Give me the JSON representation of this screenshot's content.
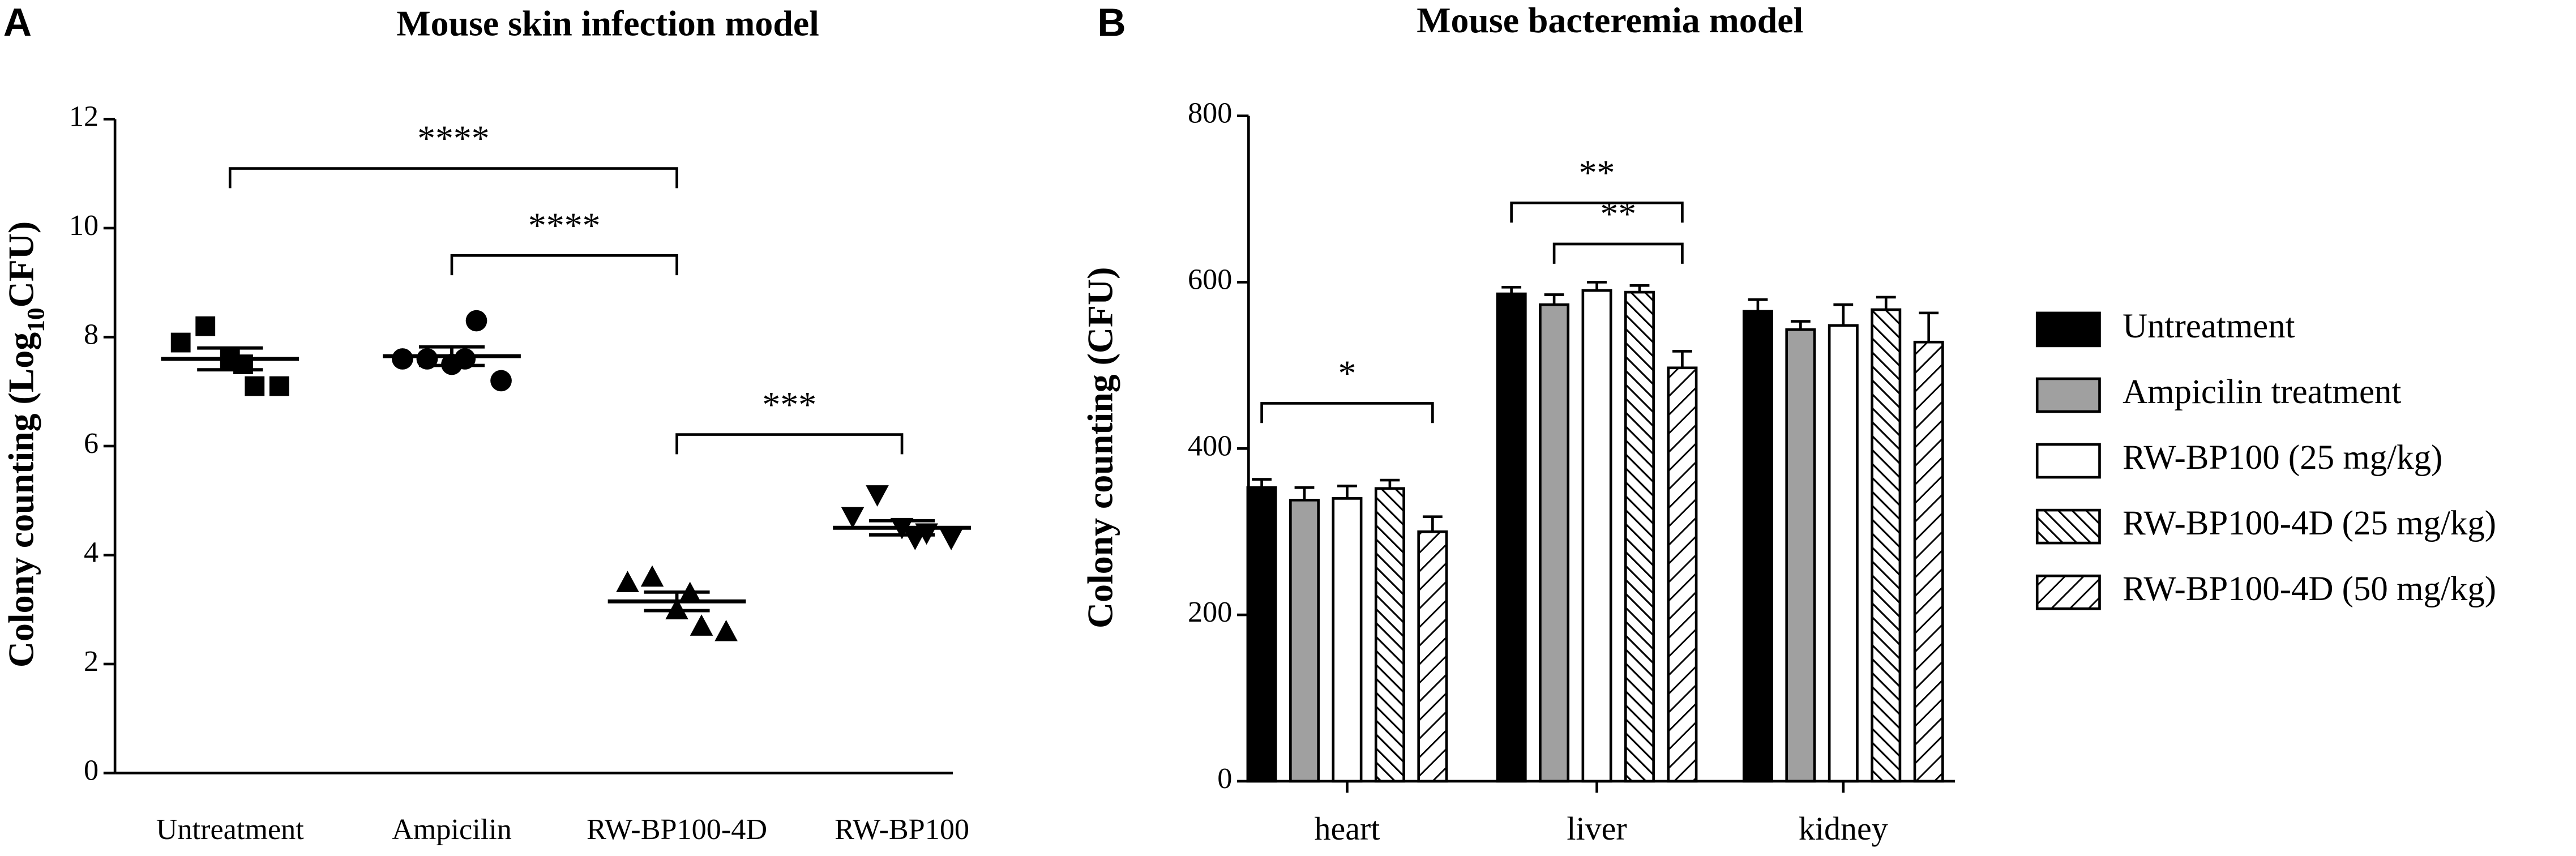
{
  "chart_data": [
    {
      "type": "dot",
      "panel": "A",
      "title": "Mouse skin infection model",
      "ylabel": [
        "Colony counting (Log",
        "10",
        "CFU)"
      ],
      "categories": [
        "Untreatment",
        "Ampicilin",
        "RW-BP100-4D",
        "RW-BP100"
      ],
      "markers": [
        "square",
        "circle",
        "triangle",
        "triangle-down"
      ],
      "color": "#000000",
      "values": [
        [
          7.9,
          8.2,
          7.6,
          7.1,
          7.1,
          7.5
        ],
        [
          7.6,
          7.6,
          7.5,
          8.3,
          7.2,
          7.6
        ],
        [
          3.5,
          3.6,
          3.0,
          2.7,
          2.6,
          3.3
        ],
        [
          4.7,
          5.1,
          4.5,
          4.4,
          4.3,
          4.3
        ]
      ],
      "means": [
        7.6,
        7.65,
        3.15,
        4.5
      ],
      "sems": [
        0.2,
        0.17,
        0.17,
        0.13
      ],
      "ylim": [
        0,
        12
      ],
      "yticks": [
        0,
        2,
        4,
        6,
        8,
        10,
        12
      ],
      "annotations": [
        "****",
        "****",
        "***"
      ]
    },
    {
      "type": "bar",
      "panel": "B",
      "title": "Mouse bacteremia model",
      "ylabel": "Colony counting (CFU)",
      "categories": [
        "heart",
        "liver",
        "kidney"
      ],
      "series": [
        {
          "name": "Untreatment",
          "color": "#000000",
          "hatch": "none",
          "values": [
            353,
            586,
            565
          ],
          "errors": [
            10,
            8,
            14
          ]
        },
        {
          "name": "Ampicilin treatment",
          "color": "#a0a0a0",
          "hatch": "none",
          "values": [
            338,
            573,
            543
          ],
          "errors": [
            15,
            12,
            10
          ]
        },
        {
          "name": "RW-BP100 (25 mg/kg)",
          "color": "#ffffff",
          "hatch": "none",
          "values": [
            340,
            590,
            548
          ],
          "errors": [
            15,
            10,
            25
          ]
        },
        {
          "name": "RW-BP100-4D (25 mg/kg)",
          "color": "#ffffff",
          "hatch": "back",
          "values": [
            352,
            588,
            567
          ],
          "errors": [
            10,
            8,
            15
          ]
        },
        {
          "name": "RW-BP100-4D (50 mg/kg)",
          "color": "#ffffff",
          "hatch": "forward",
          "values": [
            300,
            497,
            528
          ],
          "errors": [
            18,
            20,
            35
          ]
        }
      ],
      "ylim": [
        0,
        800
      ],
      "yticks": [
        0,
        200,
        400,
        600,
        800
      ],
      "annotations": [
        "*",
        "**",
        "**"
      ]
    }
  ]
}
